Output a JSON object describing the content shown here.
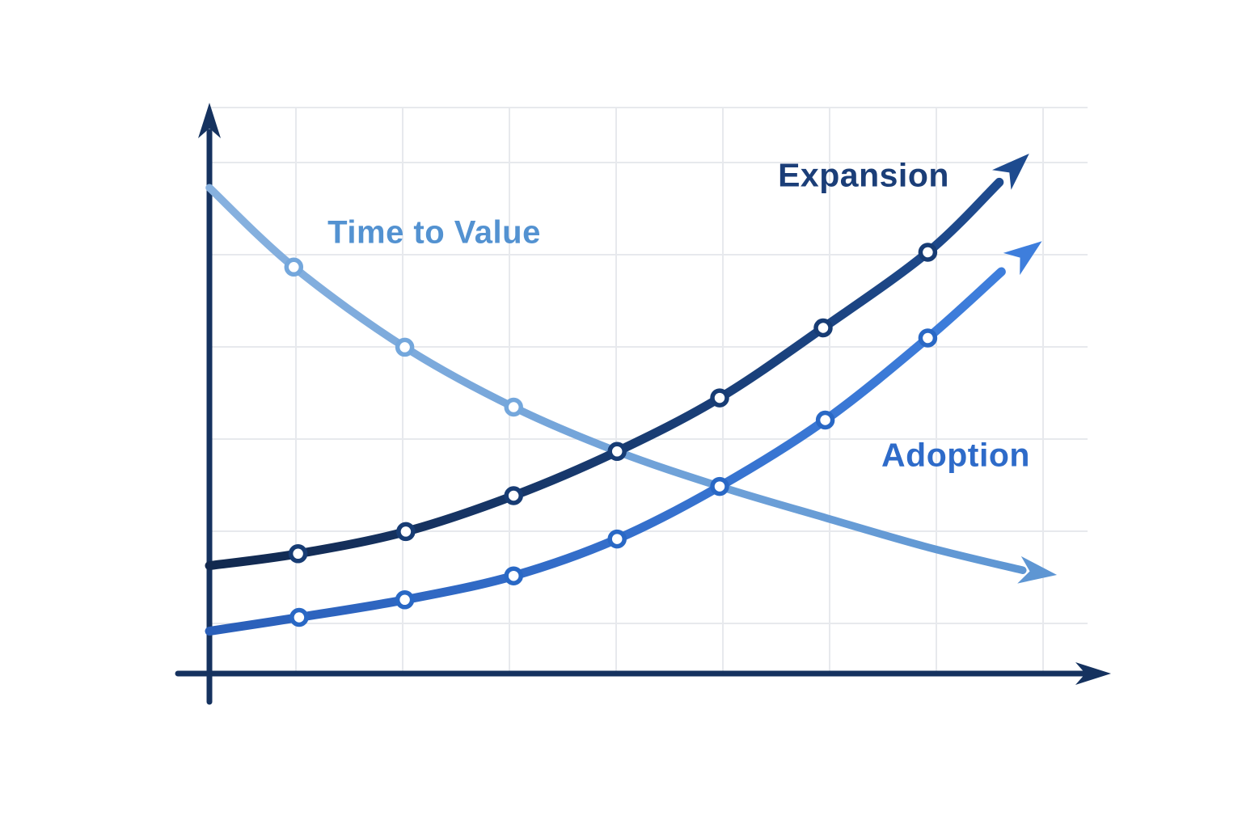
{
  "labels": {
    "expansion": "Expansion",
    "adoption": "Adoption",
    "time_to_value": "Time to Value"
  },
  "chart_data": {
    "type": "line",
    "title": "",
    "xlabel": "",
    "ylabel": "",
    "background_color": "#FFFFFF",
    "grid": {
      "visible": true,
      "color": "#E7E9ED"
    },
    "axes": {
      "color": "#15325F",
      "tick_labels": "none (unlabeled conceptual axes with arrowheads)"
    },
    "unit_note": "No numeric ticks shown; x is measured in vertical-gridline spacings right of the y-axis, y in horizontal-gridline spacings above the x-axis",
    "x_range": [
      0,
      8
    ],
    "y_range": [
      0,
      6
    ],
    "legend": "inline text labels next to curves",
    "series": [
      {
        "name": "Time to Value",
        "label": "Time to Value",
        "trend": "decreasing, flattening (decay) with arrowhead end",
        "color": "#87B1DF",
        "color2": "#5E96D3",
        "marker_color": "#74A7DC",
        "label_color": "#5392D1",
        "points": [
          [
            0.0,
            5.27
          ],
          [
            0.79,
            4.41
          ],
          [
            1.83,
            3.54
          ],
          [
            2.85,
            2.89
          ],
          [
            3.82,
            2.41
          ],
          [
            4.78,
            2.03
          ],
          [
            5.77,
            1.69
          ],
          [
            6.73,
            1.37
          ],
          [
            7.62,
            1.12
          ]
        ],
        "arrow_tip": [
          7.94,
          1.07
        ],
        "markers": [
          [
            0.79,
            4.41
          ],
          [
            1.83,
            3.54
          ],
          [
            2.85,
            2.89
          ]
        ]
      },
      {
        "name": "Expansion",
        "label": "Expansion",
        "trend": "increasing, convex (accelerating growth) with arrowhead end",
        "color": "#12294F",
        "color2": "#1E4B8F",
        "marker_color": "#173C74",
        "label_color": "#1B3E78",
        "points": [
          [
            0.0,
            1.17
          ],
          [
            0.83,
            1.3
          ],
          [
            1.84,
            1.54
          ],
          [
            2.85,
            1.93
          ],
          [
            3.82,
            2.41
          ],
          [
            4.78,
            2.99
          ],
          [
            5.75,
            3.75
          ],
          [
            6.73,
            4.57
          ],
          [
            7.4,
            5.33
          ]
        ],
        "arrow_tip": [
          7.68,
          5.64
        ],
        "markers": [
          [
            0.83,
            1.3
          ],
          [
            1.84,
            1.54
          ],
          [
            2.85,
            1.93
          ],
          [
            3.82,
            2.41
          ],
          [
            4.78,
            2.99
          ],
          [
            5.75,
            3.75
          ],
          [
            6.73,
            4.57
          ]
        ]
      },
      {
        "name": "Adoption",
        "label": "Adoption",
        "trend": "increasing, convex (accelerating growth) with arrowhead end",
        "color": "#2A5FB9",
        "color2": "#3E7EDC",
        "marker_color": "#2968C5",
        "label_color": "#2E6BC9",
        "points": [
          [
            0.0,
            0.46
          ],
          [
            0.84,
            0.61
          ],
          [
            1.83,
            0.8
          ],
          [
            2.85,
            1.06
          ],
          [
            3.82,
            1.46
          ],
          [
            4.78,
            2.03
          ],
          [
            5.77,
            2.75
          ],
          [
            6.73,
            3.64
          ],
          [
            7.42,
            4.36
          ]
        ],
        "arrow_tip": [
          7.8,
          4.69
        ],
        "markers": [
          [
            0.84,
            0.61
          ],
          [
            1.83,
            0.8
          ],
          [
            2.85,
            1.06
          ],
          [
            3.82,
            1.46
          ],
          [
            4.78,
            2.03
          ],
          [
            5.77,
            2.75
          ],
          [
            6.73,
            3.64
          ]
        ]
      }
    ],
    "annotations": [
      "Expansion and Time to Value curves cross near gridline 4",
      "Adoption and Time to Value curves cross near gridline 5"
    ]
  }
}
